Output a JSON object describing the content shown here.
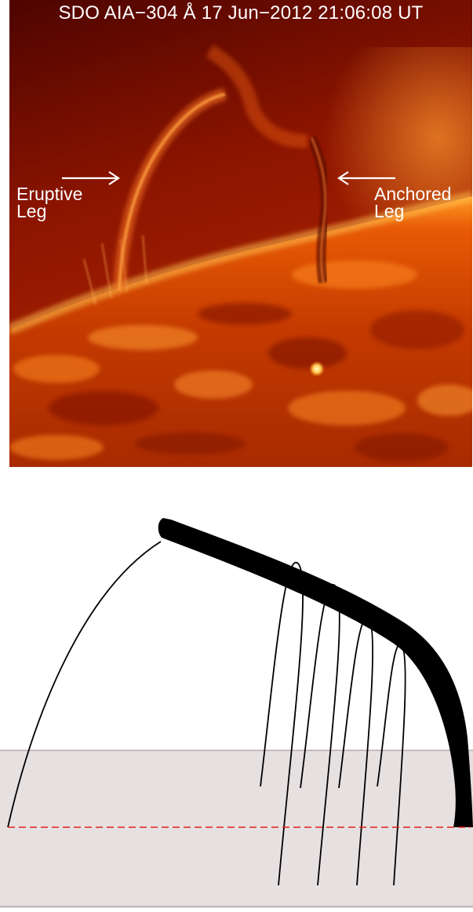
{
  "observation": {
    "title": "SDO AIA−304 Å 17 Jun−2012 21:06:08 UT",
    "labels": {
      "eruptive_leg": [
        "Eruptive",
        "Leg"
      ],
      "anchored_leg": [
        "Anchored",
        "Leg"
      ]
    },
    "colors": {
      "disk_dark": "#5a0500",
      "disk_mid": "#b52a00",
      "disk_bright": "#ff8a1a",
      "annotation": "#ffffff"
    }
  },
  "sketch": {
    "colors": {
      "flux_rope": "#000000",
      "field_lines": "#000000",
      "surface_band": "#e6e0e1",
      "surface_edge": "#a08888",
      "photosphere_line": "#e0201e"
    },
    "field_loop_count": 4
  }
}
